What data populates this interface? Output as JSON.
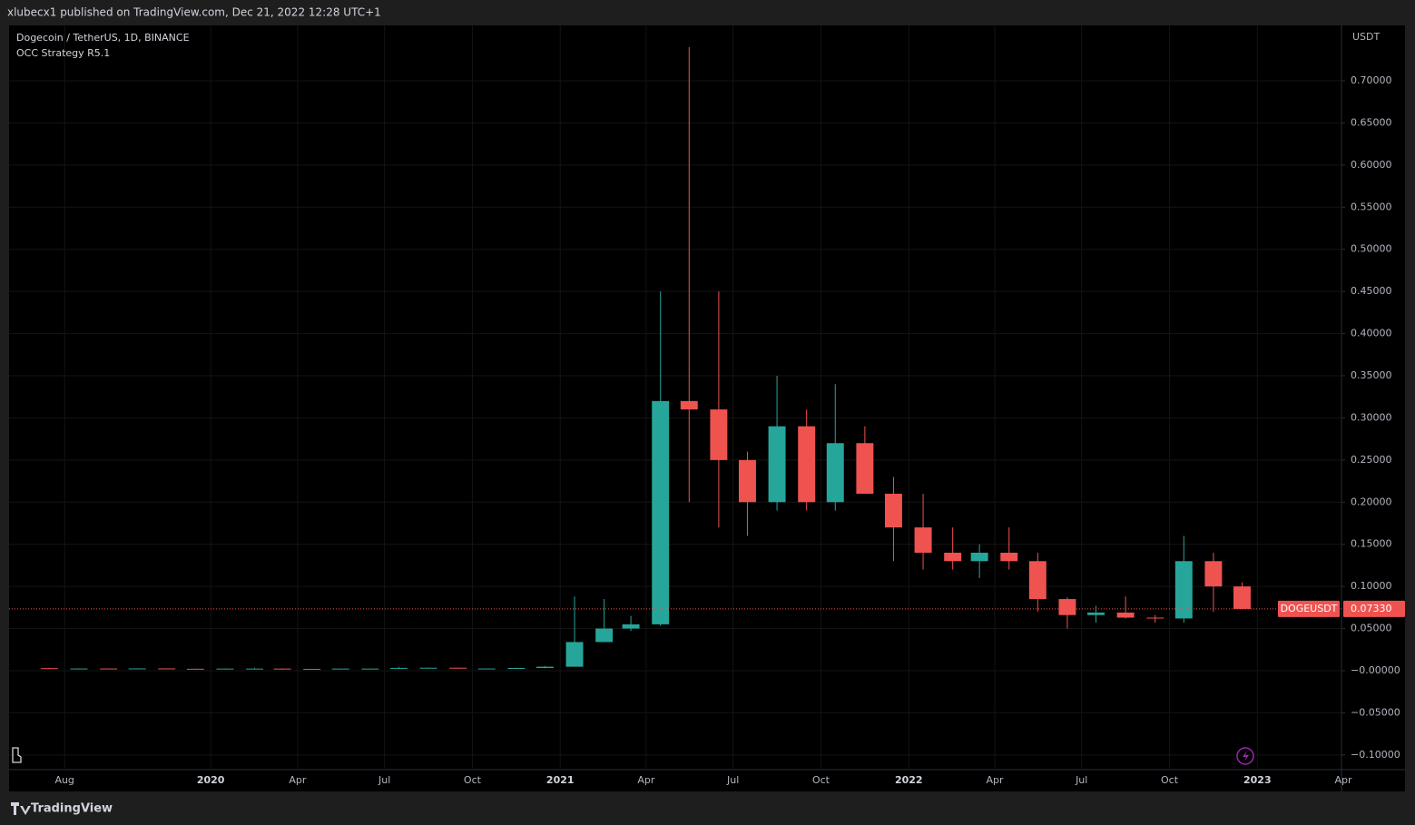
{
  "header": {
    "published": "xlubecx1 published on TradingView.com, Dec 21, 2022 12:28 UTC+1"
  },
  "chart_data": {
    "type": "candlestick",
    "title": "Dogecoin / TetherUS, 1D, BINANCE",
    "subtitle": "OCC Strategy R5.1",
    "y_axis_label": "USDT",
    "x": [
      "2019-07",
      "2019-08",
      "2019-09",
      "2019-10",
      "2019-11",
      "2019-12",
      "2020-01",
      "2020-02",
      "2020-03",
      "2020-04",
      "2020-05",
      "2020-06",
      "2020-07",
      "2020-08",
      "2020-09",
      "2020-10",
      "2020-11",
      "2020-12",
      "2021-01",
      "2021-02",
      "2021-03",
      "2021-04",
      "2021-05",
      "2021-06",
      "2021-07",
      "2021-08",
      "2021-09",
      "2021-10",
      "2021-11",
      "2021-12",
      "2022-01",
      "2022-02",
      "2022-03",
      "2022-04",
      "2022-05",
      "2022-06",
      "2022-07",
      "2022-08",
      "2022-09",
      "2022-10",
      "2022-11",
      "2022-12"
    ],
    "open": [
      0.003,
      0.0025,
      0.0026,
      0.0025,
      0.0027,
      0.0023,
      0.002,
      0.0025,
      0.0025,
      0.0017,
      0.0021,
      0.0025,
      0.0025,
      0.0033,
      0.0035,
      0.0026,
      0.0026,
      0.0032,
      0.0047,
      0.034,
      0.05,
      0.055,
      0.32,
      0.31,
      0.25,
      0.2,
      0.29,
      0.2,
      0.27,
      0.21,
      0.17,
      0.14,
      0.13,
      0.14,
      0.13,
      0.085,
      0.066,
      0.069,
      0.063,
      0.062,
      0.13,
      0.1
    ],
    "high": [
      0.0035,
      0.0028,
      0.0027,
      0.0029,
      0.0028,
      0.0024,
      0.0027,
      0.0035,
      0.0025,
      0.0023,
      0.0027,
      0.0026,
      0.0045,
      0.0038,
      0.0035,
      0.0028,
      0.0036,
      0.0057,
      0.088,
      0.085,
      0.065,
      0.45,
      0.74,
      0.45,
      0.26,
      0.35,
      0.31,
      0.34,
      0.29,
      0.23,
      0.21,
      0.17,
      0.15,
      0.17,
      0.14,
      0.087,
      0.077,
      0.088,
      0.066,
      0.16,
      0.14,
      0.105
    ],
    "low": [
      0.0024,
      0.0023,
      0.0022,
      0.0024,
      0.0022,
      0.0019,
      0.002,
      0.0024,
      0.0011,
      0.0017,
      0.0019,
      0.0024,
      0.0025,
      0.003,
      0.0025,
      0.0025,
      0.0025,
      0.0029,
      0.0047,
      0.034,
      0.047,
      0.053,
      0.2,
      0.17,
      0.16,
      0.19,
      0.19,
      0.19,
      0.21,
      0.13,
      0.12,
      0.12,
      0.11,
      0.12,
      0.07,
      0.05,
      0.057,
      0.062,
      0.057,
      0.057,
      0.07,
      0.073
    ],
    "close": [
      0.0025,
      0.0026,
      0.0025,
      0.0027,
      0.0023,
      0.002,
      0.0025,
      0.0025,
      0.0017,
      0.0021,
      0.0025,
      0.0025,
      0.0033,
      0.0035,
      0.0026,
      0.0026,
      0.0032,
      0.0047,
      0.034,
      0.05,
      0.055,
      0.32,
      0.31,
      0.25,
      0.2,
      0.29,
      0.2,
      0.27,
      0.21,
      0.17,
      0.14,
      0.13,
      0.14,
      0.13,
      0.085,
      0.066,
      0.069,
      0.063,
      0.062,
      0.13,
      0.1,
      0.0733
    ],
    "up_color": "#26a69a",
    "down_color": "#ef5350",
    "xlim": [
      "2019-06",
      "2023-04"
    ],
    "xticks": [
      {
        "value": "2019-08",
        "label": "Aug"
      },
      {
        "value": "2020-01",
        "label": "2020"
      },
      {
        "value": "2020-04",
        "label": "Apr"
      },
      {
        "value": "2020-07",
        "label": "Jul"
      },
      {
        "value": "2020-10",
        "label": "Oct"
      },
      {
        "value": "2021-01",
        "label": "2021"
      },
      {
        "value": "2021-04",
        "label": "Apr"
      },
      {
        "value": "2021-07",
        "label": "Jul"
      },
      {
        "value": "2021-10",
        "label": "Oct"
      },
      {
        "value": "2022-01",
        "label": "2022"
      },
      {
        "value": "2022-04",
        "label": "Apr"
      },
      {
        "value": "2022-07",
        "label": "Jul"
      },
      {
        "value": "2022-10",
        "label": "Oct"
      },
      {
        "value": "2023-01",
        "label": "2023"
      },
      {
        "value": "2023-04",
        "label": "Apr"
      }
    ],
    "ylim": [
      -0.1174,
      0.7657
    ],
    "yticks": [
      {
        "value": -0.1,
        "label": "−0.10000"
      },
      {
        "value": -0.05,
        "label": "−0.05000"
      },
      {
        "value": 0,
        "label": "−0.00000"
      },
      {
        "value": 0.05,
        "label": "0.05000"
      },
      {
        "value": 0.1,
        "label": "0.10000"
      },
      {
        "value": 0.15,
        "label": "0.15000"
      },
      {
        "value": 0.2,
        "label": "0.20000"
      },
      {
        "value": 0.25,
        "label": "0.25000"
      },
      {
        "value": 0.3,
        "label": "0.30000"
      },
      {
        "value": 0.35,
        "label": "0.35000"
      },
      {
        "value": 0.4,
        "label": "0.40000"
      },
      {
        "value": 0.45,
        "label": "0.45000"
      },
      {
        "value": 0.5,
        "label": "0.50000"
      },
      {
        "value": 0.55,
        "label": "0.55000"
      },
      {
        "value": 0.6,
        "label": "0.60000"
      },
      {
        "value": 0.65,
        "label": "0.65000"
      },
      {
        "value": 0.7,
        "label": "0.70000"
      }
    ],
    "grid": true,
    "last_price": {
      "symbol": "DOGEUSDT",
      "value": 0.0733,
      "label": "0.07330",
      "color": "#ef5350"
    }
  },
  "footer": {
    "brand": "TradingView"
  }
}
